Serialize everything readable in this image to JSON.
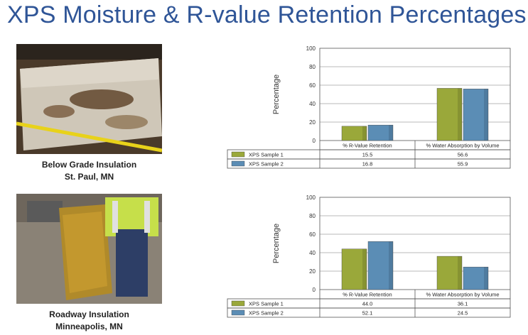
{
  "title": "XPS Moisture & R-value Retention Percentages",
  "photos": [
    {
      "caption_line1": "Below Grade Insulation",
      "caption_line2": "St. Paul, MN"
    },
    {
      "caption_line1": "Roadway Insulation",
      "caption_line2": "Minneapolis, MN"
    }
  ],
  "colors": {
    "series1": "#9aa83a",
    "series2": "#5b8db5"
  },
  "chart_data": [
    {
      "type": "bar",
      "categories": [
        "% R-Value Retention",
        "% Water Absorption by Volume"
      ],
      "series": [
        {
          "name": "XPS Sample 1",
          "values": [
            15.5,
            56.6
          ],
          "labels": [
            "15.5",
            "56.6"
          ]
        },
        {
          "name": "XPS Sample 2",
          "values": [
            16.8,
            55.9
          ],
          "labels": [
            "16.8",
            "55.9"
          ]
        }
      ],
      "ylabel": "Percentage",
      "ylim": [
        0,
        100
      ],
      "yticks": [
        "0",
        "20",
        "40",
        "60",
        "80",
        "100"
      ],
      "grid": true,
      "legend": "data table below chart"
    },
    {
      "type": "bar",
      "categories": [
        "% R-Value Retention",
        "% Water Absorption by Volume"
      ],
      "series": [
        {
          "name": "XPS Sample 1",
          "values": [
            44.0,
            36.1
          ],
          "labels": [
            "44.0",
            "36.1"
          ]
        },
        {
          "name": "XPS Sample 2",
          "values": [
            52.1,
            24.5
          ],
          "labels": [
            "52.1",
            "24.5"
          ]
        }
      ],
      "ylabel": "Percentage",
      "ylim": [
        0,
        100
      ],
      "yticks": [
        "0",
        "20",
        "40",
        "60",
        "80",
        "100"
      ],
      "grid": true,
      "legend": "data table below chart"
    }
  ]
}
